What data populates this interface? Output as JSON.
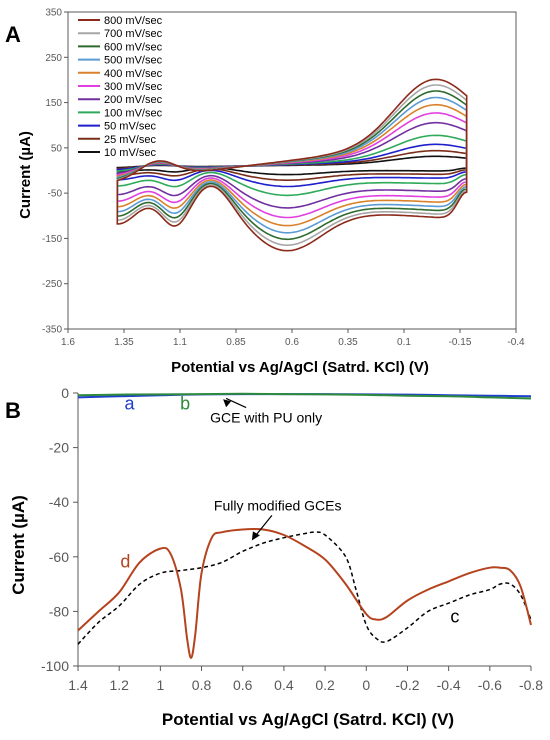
{
  "chart_data": [
    {
      "panel": "A",
      "type": "line",
      "title": "",
      "xlabel": "Potential vs Ag/AgCl (Satrd. KCl)  (V)",
      "ylabel": "Current (µA)",
      "xlim": [
        1.6,
        -0.4
      ],
      "ylim": [
        -350,
        350
      ],
      "x_ticks": [
        "1.6",
        "1.35",
        "1.1",
        "0.85",
        "0.6",
        "0.35",
        "0.1",
        "-0.15",
        "-0.4"
      ],
      "y_ticks": [
        "350",
        "250",
        "150",
        "50",
        "-50",
        "-150",
        "-250",
        "-350"
      ],
      "legend_position": "top-left",
      "series": [
        {
          "name": "800 mV/sec",
          "color": "#8B2A1A",
          "scan_rate": 800
        },
        {
          "name": "700 mV/sec",
          "color": "#A6A6A6",
          "scan_rate": 700
        },
        {
          "name": "600 mV/sec",
          "color": "#2E6B2E",
          "scan_rate": 600
        },
        {
          "name": "500 mV/sec",
          "color": "#5B9BD5",
          "scan_rate": 500
        },
        {
          "name": "400 mV/sec",
          "color": "#D9822B",
          "scan_rate": 400
        },
        {
          "name": "300 mV/sec",
          "color": "#E040E0",
          "scan_rate": 300
        },
        {
          "name": "200 mV/sec",
          "color": "#7030A0",
          "scan_rate": 200
        },
        {
          "name": "100 mV/sec",
          "color": "#2EAA5A",
          "scan_rate": 100
        },
        {
          "name": "50 mV/sec",
          "color": "#1F1FCC",
          "scan_rate": 50
        },
        {
          "name": "25 mV/sec",
          "color": "#7A2E1A",
          "scan_rate": 25
        },
        {
          "name": "10 mV/sec",
          "color": "#111111",
          "scan_rate": 10
        }
      ]
    },
    {
      "panel": "B",
      "type": "line",
      "title": "",
      "xlabel": "Potential vs Ag/AgCl (Satrd. KCl) (V)",
      "ylabel": "Current (µA)",
      "xlim": [
        1.4,
        -0.8
      ],
      "ylim": [
        -100,
        0
      ],
      "x_ticks": [
        "1.4",
        "1.2",
        "1",
        "0.8",
        "0.6",
        "0.4",
        "0.2",
        "0",
        "-0.2",
        "-0.4",
        "-0.6",
        "-0.8"
      ],
      "y_ticks": [
        "0",
        "-20",
        "-40",
        "-60",
        "-80",
        "-100"
      ],
      "annotations": [
        {
          "text": "GCE with PU only",
          "x": 0.7,
          "y": -9
        },
        {
          "text": "Fully modified GCEs",
          "x": 0.4,
          "y": -43
        }
      ],
      "series": [
        {
          "name": "a",
          "color": "#1F3FCC",
          "style": "solid",
          "x": [
            1.4,
            1.2,
            1.0,
            0.8,
            0.6,
            0.4,
            0.2,
            0.0,
            -0.2,
            -0.4,
            -0.6,
            -0.8
          ],
          "y": [
            -1.6,
            -1.2,
            -0.8,
            -0.5,
            -0.4,
            -0.4,
            -0.4,
            -0.5,
            -0.6,
            -0.8,
            -1.0,
            -1.2
          ]
        },
        {
          "name": "b",
          "color": "#2E8B3E",
          "style": "solid",
          "x": [
            1.4,
            1.2,
            1.0,
            0.8,
            0.6,
            0.4,
            0.2,
            0.0,
            -0.2,
            -0.4,
            -0.6,
            -0.8
          ],
          "y": [
            -0.8,
            -0.6,
            -0.5,
            -0.4,
            -0.3,
            -0.4,
            -0.5,
            -0.7,
            -1.0,
            -1.2,
            -1.6,
            -2.0
          ]
        },
        {
          "name": "c",
          "color": "#000000",
          "style": "dashed",
          "x": [
            1.4,
            1.3,
            1.2,
            1.1,
            1.0,
            0.9,
            0.8,
            0.7,
            0.6,
            0.5,
            0.4,
            0.3,
            0.25,
            0.2,
            0.1,
            0.05,
            0.0,
            -0.05,
            -0.1,
            -0.2,
            -0.3,
            -0.4,
            -0.5,
            -0.6,
            -0.65,
            -0.7,
            -0.75,
            -0.8
          ],
          "y": [
            -92,
            -84,
            -78,
            -70,
            -66,
            -65,
            -64,
            -62,
            -58,
            -55,
            -53,
            -51.5,
            -51,
            -52,
            -60,
            -72,
            -85,
            -90,
            -91,
            -86,
            -80,
            -77,
            -74,
            -72,
            -70,
            -70,
            -74,
            -83
          ]
        },
        {
          "name": "d",
          "color": "#B5431E",
          "style": "solid",
          "x": [
            1.4,
            1.3,
            1.2,
            1.1,
            1.0,
            0.95,
            0.9,
            0.87,
            0.85,
            0.83,
            0.8,
            0.75,
            0.7,
            0.6,
            0.5,
            0.4,
            0.3,
            0.2,
            0.1,
            0.0,
            -0.05,
            -0.1,
            -0.2,
            -0.3,
            -0.4,
            -0.5,
            -0.6,
            -0.65,
            -0.7,
            -0.75,
            -0.8
          ],
          "y": [
            -87,
            -80,
            -73,
            -62,
            -57,
            -59,
            -72,
            -90,
            -97,
            -88,
            -66,
            -53,
            -51,
            -50,
            -50,
            -52,
            -56,
            -61,
            -70,
            -81,
            -83,
            -82,
            -76,
            -72,
            -69,
            -66,
            -64,
            -64,
            -65,
            -71,
            -85
          ]
        }
      ]
    }
  ]
}
